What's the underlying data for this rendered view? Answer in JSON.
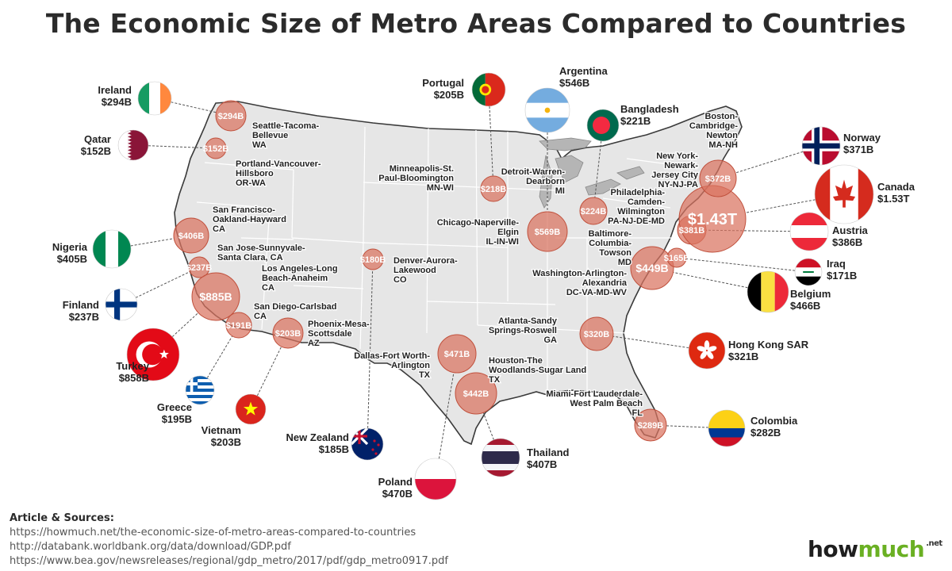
{
  "title": "The Economic Size of Metro Areas Compared to Countries",
  "metros": [
    {
      "name": [
        "Seattle-Tacoma-",
        "Bellevue",
        "WA"
      ],
      "value": "$294B"
    },
    {
      "name": [
        "Portland-Vancouver-",
        "Hillsboro",
        "OR-WA"
      ],
      "value": "$152B"
    },
    {
      "name": [
        "San Francisco-",
        "Oakland-Hayward",
        "CA"
      ],
      "value": "$406B"
    },
    {
      "name": [
        "San Jose-Sunnyvale-",
        "Santa Clara, CA"
      ],
      "value": "$237B"
    },
    {
      "name": [
        "Los Angeles-Long",
        "Beach-Anaheim",
        "CA"
      ],
      "value": "$885B"
    },
    {
      "name": [
        "San Diego-Carlsbad",
        "CA"
      ],
      "value": "$191B"
    },
    {
      "name": [
        "Phoenix-Mesa-",
        "Scottsdale",
        "AZ"
      ],
      "value": "$203B"
    },
    {
      "name": [
        "Denver-Aurora-",
        "Lakewood",
        "CO"
      ],
      "value": "$180B"
    },
    {
      "name": [
        "Dallas-Fort Worth-",
        "Arlington",
        "TX"
      ],
      "value": "$471B"
    },
    {
      "name": [
        "Houston-The",
        "Woodlands-Sugar Land",
        "TX"
      ],
      "value": "$442B"
    },
    {
      "name": [
        "Minneapolis-St.",
        "Paul-Bloomington",
        "MN-WI"
      ],
      "value": "$218B"
    },
    {
      "name": [
        "Chicago-Naperville-",
        "Elgin",
        "IL-IN-WI"
      ],
      "value": "$569B"
    },
    {
      "name": [
        "Detroit-Warren-",
        "Dearborn",
        "MI"
      ],
      "value": "$224B"
    },
    {
      "name": [
        "Atlanta-Sandy",
        "Springs-Roswell",
        "GA"
      ],
      "value": "$320B"
    },
    {
      "name": [
        "Miami-Fort Lauderdale-",
        "West Palm Beach",
        "FL"
      ],
      "value": "$289B"
    },
    {
      "name": [
        "Washington-Arlington-",
        "Alexandria",
        "DC-VA-MD-WV"
      ],
      "value": "$449B"
    },
    {
      "name": [
        "Baltimore-",
        "Columbia-",
        "Towson",
        "MD"
      ],
      "value": "$165B"
    },
    {
      "name": [
        "Philadelphia-",
        "Camden-",
        "Wilmington",
        "PA-NJ-DE-MD"
      ],
      "value": "$381B"
    },
    {
      "name": [
        "New York-",
        "Newark-",
        "Jersey City",
        "NY-NJ-PA"
      ],
      "value": "$1.43T"
    },
    {
      "name": [
        "Boston-",
        "Cambridge-",
        "Newton",
        "MA-NH"
      ],
      "value": "$372B"
    }
  ],
  "countries": [
    {
      "name": "Ireland",
      "value": "$294B",
      "flag": "ireland"
    },
    {
      "name": "Qatar",
      "value": "$152B",
      "flag": "qatar"
    },
    {
      "name": "Nigeria",
      "value": "$405B",
      "flag": "nigeria"
    },
    {
      "name": "Finland",
      "value": "$237B",
      "flag": "finland"
    },
    {
      "name": "Turkey",
      "value": "$858B",
      "flag": "turkey"
    },
    {
      "name": "Greece",
      "value": "$195B",
      "flag": "greece"
    },
    {
      "name": "Vietnam",
      "value": "$203B",
      "flag": "vietnam"
    },
    {
      "name": "New  Zealand",
      "value": "$185B",
      "flag": "new-zealand"
    },
    {
      "name": "Poland",
      "value": "$470B",
      "flag": "poland"
    },
    {
      "name": "Thailand",
      "value": "$407B",
      "flag": "thailand"
    },
    {
      "name": "Portugal",
      "value": "$205B",
      "flag": "portugal"
    },
    {
      "name": "Argentina",
      "value": "$546B",
      "flag": "argentina"
    },
    {
      "name": "Bangladesh",
      "value": "$221B",
      "flag": "bangladesh"
    },
    {
      "name": "Norway",
      "value": "$371B",
      "flag": "norway"
    },
    {
      "name": "Canada",
      "value": "$1.53T",
      "flag": "canada"
    },
    {
      "name": "Austria",
      "value": "$386B",
      "flag": "austria"
    },
    {
      "name": "Iraq",
      "value": "$171B",
      "flag": "iraq"
    },
    {
      "name": "Belgium",
      "value": "$466B",
      "flag": "belgium"
    },
    {
      "name": "Hong Kong SAR",
      "value": "$321B",
      "flag": "hong-kong"
    },
    {
      "name": "Colombia",
      "value": "$282B",
      "flag": "colombia"
    }
  ],
  "sources": {
    "heading": "Article & Sources:",
    "links": [
      "https://howmuch.net/the-economic-size-of-metro-areas-compared-to-countries",
      "http://databank.worldbank.org/data/download/GDP.pdf",
      "https://www.bea.gov/newsreleases/regional/gdp_metro/2017/pdf/gdp_metro0917.pdf"
    ]
  },
  "brand": {
    "part1": "how",
    "part2": "much",
    "suffix": ".net"
  },
  "colors": {
    "bubble": "#d9735f",
    "bubble_stroke": "#c0503c",
    "land": "#e6e6e6",
    "border": "#ffffff",
    "outline": "#3a3a3a",
    "brand_green": "#6ab023"
  }
}
